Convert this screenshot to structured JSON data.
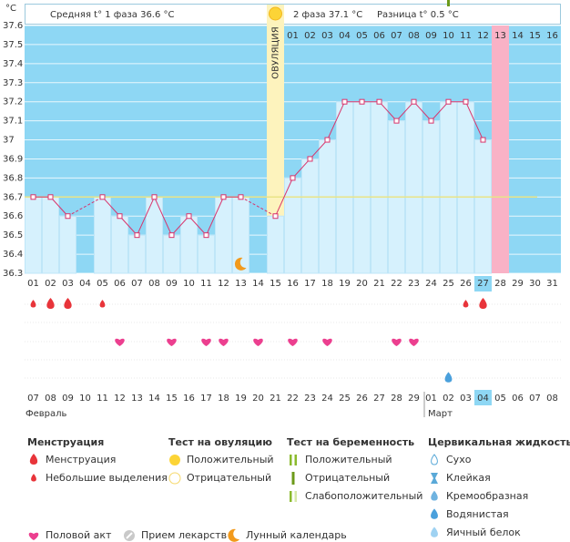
{
  "chart_data": {
    "type": "bbt",
    "y_unit": "°C",
    "phase1_label": "Средняя t° 1 фаза 36.6 °C",
    "phase2_label": "2 фаза 37.1 °C",
    "difference_label": "Разница t° 0.5 °C",
    "ovulation_label": "ОВУЛЯЦИЯ",
    "ovulation_day": 15,
    "highlight_day": 28,
    "today": 27,
    "categories": [
      "01",
      "02",
      "03",
      "04",
      "05",
      "06",
      "07",
      "08",
      "09",
      "10",
      "11",
      "12",
      "13",
      "14",
      "15",
      "16",
      "17",
      "18",
      "19",
      "20",
      "21",
      "22",
      "23",
      "24",
      "25",
      "26",
      "27",
      "28",
      "29",
      "30",
      "31"
    ],
    "phase2_days": [
      "01",
      "02",
      "03",
      "04",
      "05",
      "06",
      "07",
      "08",
      "09",
      "10",
      "11",
      "12",
      "13",
      "14",
      "15",
      "16"
    ],
    "values": [
      36.7,
      36.7,
      36.6,
      null,
      36.7,
      36.6,
      36.5,
      36.7,
      36.5,
      36.6,
      36.5,
      36.7,
      36.7,
      null,
      36.6,
      36.8,
      36.9,
      37.0,
      37.2,
      37.2,
      37.2,
      37.1,
      37.2,
      37.1,
      37.2,
      37.2,
      37.0,
      null,
      null,
      null,
      null
    ],
    "coverline": 36.7,
    "ylim": [
      36.3,
      37.6
    ],
    "yticks": [
      36.3,
      36.4,
      36.5,
      36.6,
      36.7,
      36.8,
      36.9,
      37,
      37.1,
      37.2,
      37.3,
      37.4,
      37.5,
      37.6
    ],
    "grid": true,
    "line_color": "#d9336b",
    "dates": [
      "07",
      "08",
      "09",
      "10",
      "11",
      "12",
      "13",
      "14",
      "15",
      "16",
      "17",
      "18",
      "19",
      "20",
      "21",
      "22",
      "23",
      "24",
      "25",
      "26",
      "27",
      "28",
      "29",
      "01",
      "02",
      "03",
      "04",
      "05",
      "06",
      "07",
      "08"
    ],
    "date_colors": [
      "#d0104c",
      "#333333",
      "#333333",
      "#333333",
      "#333333",
      "#333333",
      "#d0104c",
      "#d0104c",
      "#333333",
      "#333333",
      "#333333",
      "#333333",
      "#333333",
      "#d0104c",
      "#d0104c",
      "#333333",
      "#333333",
      "#333333",
      "#333333",
      "#333333",
      "#d0104c",
      "#d0104c",
      "#333333",
      "#333333",
      "#333333",
      "#333333",
      "#333333",
      "#d0104c",
      "#d0104c",
      "#333333",
      "#333333"
    ],
    "months": [
      "Февраль",
      "Март"
    ],
    "legend": {
      "groups": [
        {
          "title": "Менструация",
          "items": [
            {
              "label": "Менструация",
              "days": [
                2,
                3,
                27
              ]
            },
            {
              "label": "Небольшие выделения",
              "days": [
                1,
                5,
                26
              ]
            }
          ]
        },
        {
          "title": "Тест на овуляцию",
          "items": [
            {
              "label": "Положительный"
            },
            {
              "label": "Отрицательный"
            }
          ]
        },
        {
          "title": "Тест на беременность",
          "items": [
            {
              "label": "Положительный"
            },
            {
              "label": "Отрицательный",
              "days": [
                25
              ]
            },
            {
              "label": "Слабоположительный"
            }
          ]
        },
        {
          "title": "Цервикальная жидкость",
          "items": [
            {
              "label": "Сухо"
            },
            {
              "label": "Клейкая"
            },
            {
              "label": "Кремообразная"
            },
            {
              "label": "Водянистая",
              "days": [
                25
              ]
            },
            {
              "label": "Яичный белок"
            }
          ]
        }
      ],
      "other": [
        {
          "label": "Половой акт",
          "days": [
            6,
            9,
            11,
            12,
            14,
            16,
            18,
            22,
            23
          ]
        },
        {
          "label": "Прием лекарств"
        },
        {
          "label": "Лунный календарь",
          "days": [
            13
          ]
        }
      ]
    }
  }
}
